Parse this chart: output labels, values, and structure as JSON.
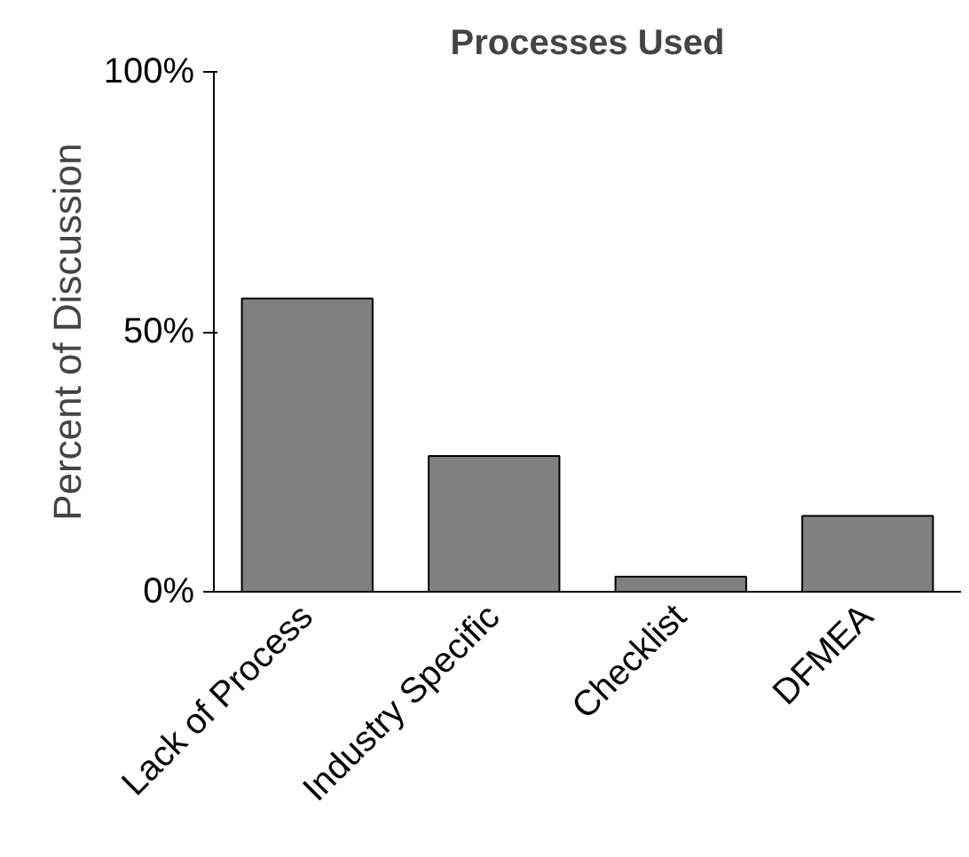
{
  "chart_data": {
    "type": "bar",
    "title": "Processes Used",
    "ylabel": "Percent of Discussion",
    "categories": [
      "Lack of Process",
      "Industry Specific",
      "Checklist",
      "DFMEA"
    ],
    "values": [
      56.4,
      26.1,
      2.9,
      14.6
    ],
    "color": "#808080",
    "ylim": [
      0,
      100
    ],
    "yticks": [
      {
        "value": 0,
        "label": "0%"
      },
      {
        "value": 50,
        "label": "50%"
      },
      {
        "value": 100,
        "label": "100%"
      }
    ],
    "grid": false
  }
}
